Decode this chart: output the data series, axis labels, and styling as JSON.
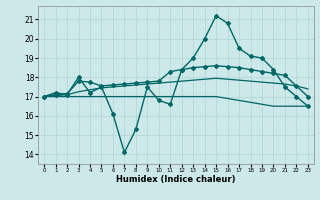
{
  "title": "",
  "xlabel": "Humidex (Indice chaleur)",
  "ylabel": "",
  "xlim": [
    -0.5,
    23.5
  ],
  "ylim": [
    13.5,
    21.7
  ],
  "yticks": [
    14,
    15,
    16,
    17,
    18,
    19,
    20,
    21
  ],
  "xticks": [
    0,
    1,
    2,
    3,
    4,
    5,
    6,
    7,
    8,
    9,
    10,
    11,
    12,
    13,
    14,
    15,
    16,
    17,
    18,
    19,
    20,
    21,
    22,
    23
  ],
  "background_color": "#cce8e8",
  "grid_color": "#b0d4d4",
  "line_color": "#006666",
  "lines": [
    {
      "x": [
        0,
        1,
        2,
        3,
        4,
        5,
        6,
        7,
        8,
        9,
        10,
        11,
        12,
        13,
        14,
        15,
        16,
        17,
        18,
        19,
        20,
        21,
        22,
        23
      ],
      "y": [
        17.0,
        17.2,
        17.1,
        18.0,
        17.2,
        17.5,
        16.1,
        14.1,
        15.3,
        17.5,
        16.8,
        16.6,
        18.4,
        19.0,
        20.0,
        21.2,
        20.8,
        19.5,
        19.1,
        19.0,
        18.4,
        17.5,
        17.0,
        16.5
      ],
      "marker": "D",
      "markersize": 2.0,
      "linewidth": 1.0
    },
    {
      "x": [
        0,
        1,
        2,
        3,
        4,
        5,
        6,
        7,
        8,
        9,
        10,
        11,
        12,
        13,
        14,
        15,
        16,
        17,
        18,
        19,
        20,
        21,
        22,
        23
      ],
      "y": [
        17.0,
        17.1,
        17.15,
        17.8,
        17.75,
        17.55,
        17.6,
        17.65,
        17.7,
        17.75,
        17.8,
        18.3,
        18.4,
        18.5,
        18.55,
        18.6,
        18.55,
        18.5,
        18.4,
        18.3,
        18.2,
        18.1,
        17.55,
        17.0
      ],
      "marker": "D",
      "markersize": 2.0,
      "linewidth": 1.0
    },
    {
      "x": [
        0,
        1,
        2,
        3,
        4,
        5,
        6,
        7,
        8,
        9,
        10,
        11,
        12,
        13,
        14,
        15,
        16,
        17,
        18,
        19,
        20,
        21,
        22,
        23
      ],
      "y": [
        17.0,
        17.05,
        17.1,
        17.25,
        17.35,
        17.45,
        17.5,
        17.55,
        17.6,
        17.65,
        17.7,
        17.75,
        17.8,
        17.85,
        17.9,
        17.95,
        17.9,
        17.85,
        17.8,
        17.75,
        17.7,
        17.65,
        17.55,
        17.4
      ],
      "marker": null,
      "markersize": 0,
      "linewidth": 0.9
    },
    {
      "x": [
        0,
        1,
        2,
        3,
        4,
        5,
        6,
        7,
        8,
        9,
        10,
        11,
        12,
        13,
        14,
        15,
        16,
        17,
        18,
        19,
        20,
        21,
        22,
        23
      ],
      "y": [
        17.0,
        17.0,
        17.0,
        17.0,
        17.0,
        17.0,
        17.0,
        17.0,
        17.0,
        17.0,
        17.0,
        17.0,
        17.0,
        17.0,
        17.0,
        17.0,
        16.9,
        16.8,
        16.7,
        16.6,
        16.5,
        16.5,
        16.5,
        16.5
      ],
      "marker": null,
      "markersize": 0,
      "linewidth": 0.9
    }
  ]
}
